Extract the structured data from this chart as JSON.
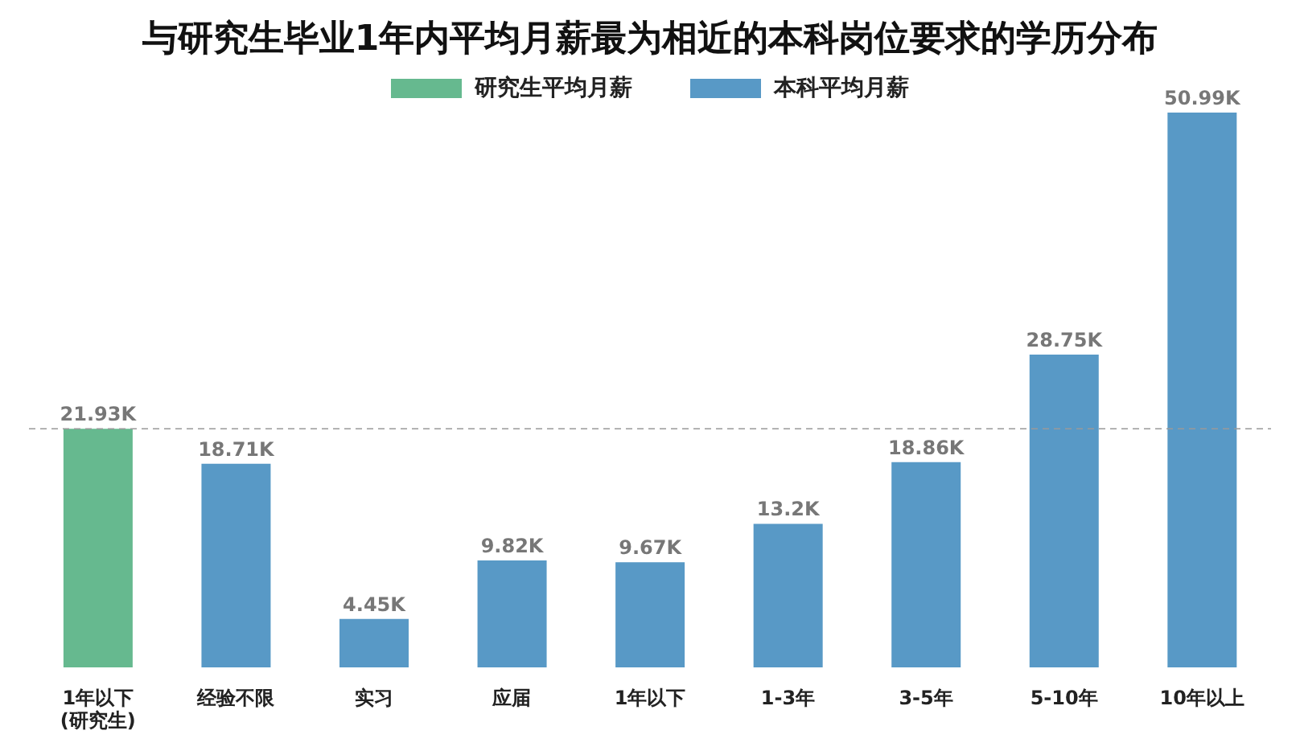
{
  "chart_data": {
    "type": "bar",
    "title": "与研究生毕业1年内平均月薪最为相近的本科岗位要求的学历分布",
    "categories": [
      "1年以下\n(研究生)",
      "经验不限",
      "实习",
      "应届",
      "1年以下",
      "1-3年",
      "3-5年",
      "5-10年",
      "10年以上"
    ],
    "stacked": true,
    "series": [
      {
        "name": "研究生平均月薪",
        "color": "#66b98f",
        "values": [
          21.93,
          null,
          null,
          null,
          null,
          null,
          null,
          null,
          null
        ],
        "value_labels": [
          "21.93K",
          null,
          null,
          null,
          null,
          null,
          null,
          null,
          null
        ]
      },
      {
        "name": "本科平均月薪",
        "color": "#5899c6",
        "values": [
          null,
          18.71,
          4.45,
          9.82,
          9.67,
          13.2,
          18.86,
          28.75,
          50.99
        ],
        "value_labels": [
          null,
          "18.71K",
          "4.45K",
          "9.82K",
          "9.67K",
          "13.2K",
          "18.86K",
          "28.75K",
          "50.99K"
        ]
      }
    ],
    "ref_lines": [
      {
        "axis": "y",
        "value": 21.93,
        "color": "#999999",
        "line_style": "dashed"
      }
    ],
    "legend": "top"
  }
}
